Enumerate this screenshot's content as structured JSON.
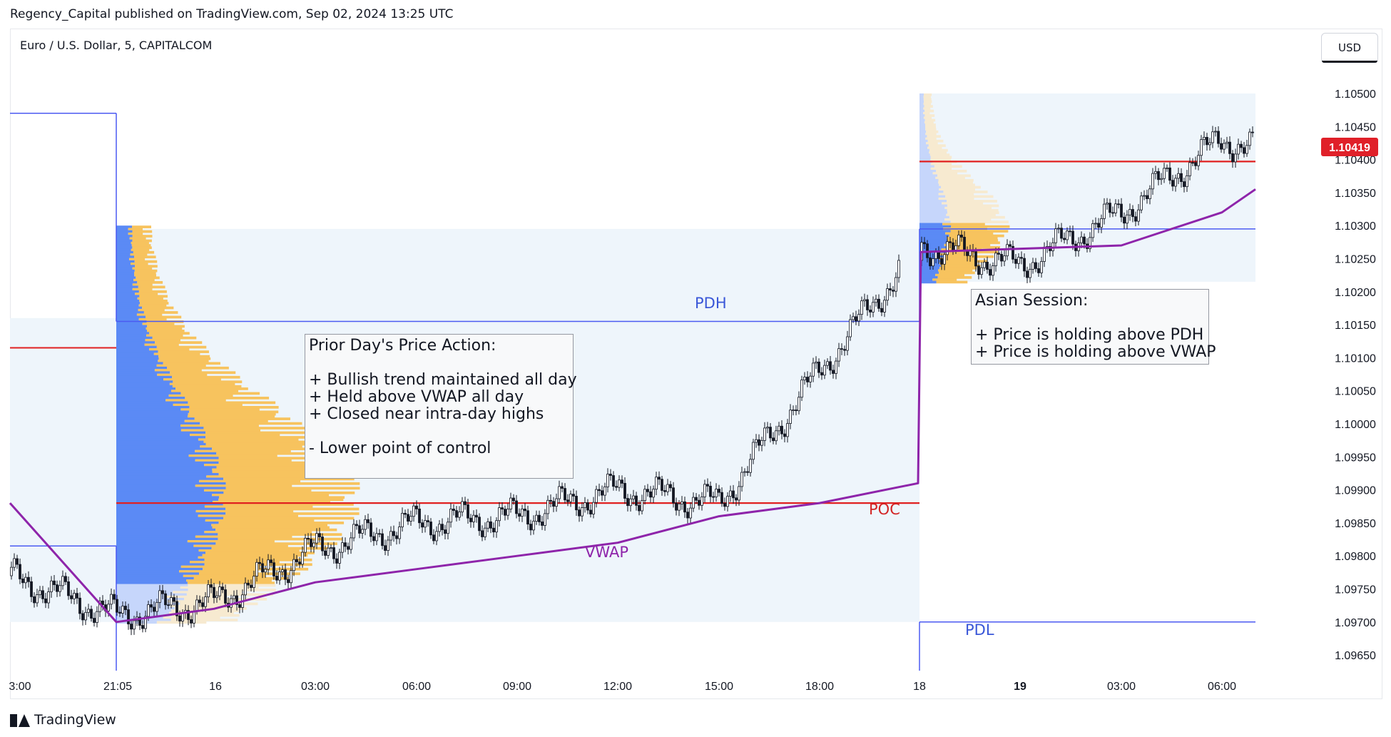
{
  "header": {
    "published_line": "Regency_Capital published on TradingView.com, Sep 02, 2024 13:25 UTC",
    "symbol_line": "Euro / U.S. Dollar, 5, CAPITALCOM",
    "currency_button": "USD",
    "footer_brand": "TradingView"
  },
  "colors": {
    "up_down_candles": "#131722",
    "pdh_pdl_lines": "#4b5af2",
    "poc_line": "#e02020",
    "vwap_line": "#8e24aa",
    "profile_blue": "#5b8af5",
    "profile_blue_light": "#c6d6fb",
    "profile_yellow": "#f7c35e",
    "profile_yellow_light": "#f7ead0",
    "price_badge": "#e02029",
    "range_fill": "#eef5fb"
  },
  "annotations": {
    "prior_day": "Prior Day's Price Action:\n\n+ Bullish trend maintained all day\n+ Held above VWAP all day\n+ Closed near intra-day highs\n\n- Lower point of control",
    "asian": "Asian Session:\n\n+ Price is holding above PDH\n+ Price is holding above VWAP",
    "pdh": "PDH",
    "pdl": "PDL",
    "poc": "POC",
    "vwap": "VWAP"
  },
  "chart_data": {
    "type": "line",
    "title": "Euro / U.S. Dollar, 5, CAPITALCOM",
    "instrument": "EUR/USD",
    "timeframe": "5",
    "ylim": [
      1.0961,
      1.1053
    ],
    "y_ticks": [
      "1.10500",
      "1.10450",
      "1.10400",
      "1.10350",
      "1.10300",
      "1.10250",
      "1.10200",
      "1.10150",
      "1.10100",
      "1.10050",
      "1.10000",
      "1.09950",
      "1.09900",
      "1.09850",
      "1.09800",
      "1.09750",
      "1.09700",
      "1.09650"
    ],
    "x_ticks": [
      "3:00",
      "21:05",
      "16",
      "03:00",
      "06:00",
      "09:00",
      "12:00",
      "15:00",
      "18:00",
      "18",
      "19",
      "03:00",
      "06:00"
    ],
    "current_price": "1.10419",
    "levels": {
      "PDH": 1.10155,
      "PDL": 1.097,
      "POC": 1.0988,
      "current_session_poc": 1.10397,
      "profile_value_area_high": 1.10295,
      "earlier_red_level": 1.10115,
      "earlier_blue_top": 1.1047,
      "earlier_blue_low": 1.09815
    },
    "price_series": {
      "name": "EUR/USD 5m close (approx.)",
      "x": [
        "3:00",
        "21:05",
        "16",
        "03:00",
        "06:00",
        "09:00",
        "12:00",
        "15:00",
        "18:00",
        "18",
        "19",
        "03:00",
        "06:00",
        "last"
      ],
      "values": [
        1.0977,
        1.0971,
        1.0973,
        1.0981,
        1.0985,
        1.0986,
        1.099,
        1.0988,
        1.1008,
        1.1027,
        1.1024,
        1.1032,
        1.1043,
        1.10419
      ]
    },
    "vwap_series": {
      "name": "VWAP",
      "x": [
        "3:00",
        "21:05",
        "16",
        "03:00",
        "06:00",
        "09:00",
        "12:00",
        "15:00",
        "18:00",
        "18",
        "19",
        "03:00",
        "06:00",
        "last"
      ],
      "values": [
        1.0988,
        1.097,
        1.0972,
        1.0976,
        1.0978,
        1.098,
        1.0982,
        1.0986,
        1.0988,
        1.0991,
        1.1026,
        1.1027,
        1.1032,
        1.10355
      ]
    },
    "legend": "none",
    "grid": false
  }
}
